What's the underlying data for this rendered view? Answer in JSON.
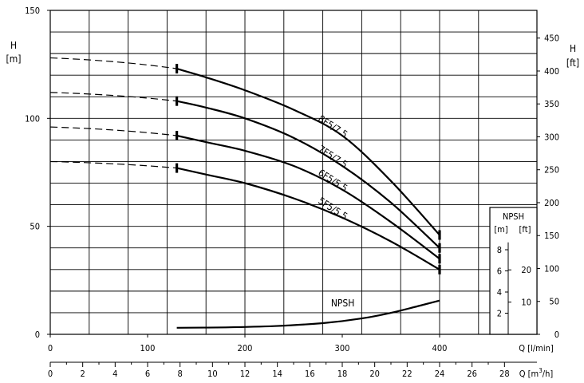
{
  "chart_data": {
    "type": "line",
    "x_axis_lpm": {
      "label": "Q [l/min]",
      "range": [
        0,
        480
      ],
      "ticks": [
        0,
        100,
        200,
        300,
        400
      ]
    },
    "x_axis_m3h": {
      "label_prefix": "Q [m",
      "label_sup": "3",
      "label_suffix": "/h]",
      "range": [
        0,
        28.8
      ],
      "ticks": [
        0,
        2,
        4,
        6,
        8,
        10,
        12,
        14,
        16,
        18,
        20,
        22,
        24,
        26,
        28
      ]
    },
    "y_axis_m": {
      "label_top": "H",
      "label_bottom": "[m]",
      "range": [
        0,
        150
      ],
      "ticks": [
        0,
        50,
        100,
        150
      ]
    },
    "y_axis_ft": {
      "label_top": "H",
      "label_bottom": "[ft]",
      "range": [
        0,
        492.1
      ],
      "ticks": [
        0,
        50,
        100,
        150,
        200,
        250,
        300,
        350,
        400,
        450
      ]
    },
    "npsh_axis": {
      "title": "NPSH",
      "unit_m": "[m]",
      "unit_ft": "[ft]",
      "range_m": [
        0,
        12
      ],
      "ticks_m": [
        2,
        4,
        6,
        8
      ],
      "ticks_ft": [
        10,
        20
      ]
    },
    "dashed_x_end_lpm": 130,
    "series": [
      {
        "name": "8F5/7.5",
        "x": [
          0,
          130,
          160,
          200,
          250,
          300,
          350,
          400
        ],
        "y": [
          128,
          123,
          119,
          113,
          104,
          92,
          71,
          46
        ]
      },
      {
        "name": "7F5/7.5",
        "x": [
          0,
          130,
          160,
          200,
          250,
          300,
          350,
          400
        ],
        "y": [
          112,
          108,
          105,
          100,
          91,
          78,
          61,
          40
        ]
      },
      {
        "name": "6F5/5.5",
        "x": [
          0,
          130,
          160,
          200,
          250,
          300,
          350,
          400
        ],
        "y": [
          96,
          92,
          89,
          85,
          78,
          67,
          52,
          35
        ]
      },
      {
        "name": "5F5/5.5",
        "x": [
          0,
          130,
          160,
          200,
          250,
          300,
          350,
          400
        ],
        "y": [
          80,
          77,
          74,
          70,
          63,
          54,
          43,
          30
        ]
      },
      {
        "name": "NPSH",
        "axis": "npsh_m",
        "x": [
          130,
          180,
          230,
          280,
          320,
          350,
          380,
          400
        ],
        "y": [
          0.62,
          0.66,
          0.78,
          1.06,
          1.5,
          2.03,
          2.72,
          3.19
        ]
      }
    ]
  }
}
